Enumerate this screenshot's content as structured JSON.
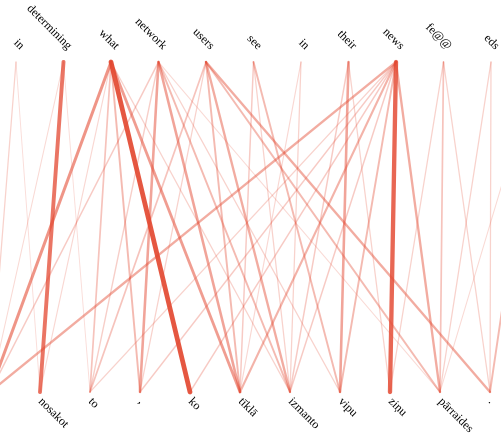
{
  "source_tokens": [
    "in",
    "determining",
    "what",
    "network",
    "users",
    "see",
    "in",
    "their",
    "news",
    "fe@@",
    "eds",
    "."
  ],
  "target_tokens": [
    "",
    "nosakot",
    "to",
    ",",
    "ko",
    "tīklā",
    "izmanto",
    "vipu",
    "ziņu",
    "pārraides",
    "."
  ],
  "colors": {
    "edge": "#e34a33"
  },
  "attention": [
    {
      "s": 0,
      "t": 0,
      "w": 0.15
    },
    {
      "s": 0,
      "t": 1,
      "w": 0.08
    },
    {
      "s": 1,
      "t": 1,
      "w": 0.75
    },
    {
      "s": 1,
      "t": 0,
      "w": 0.1
    },
    {
      "s": 1,
      "t": 2,
      "w": 0.08
    },
    {
      "s": 2,
      "t": 4,
      "w": 0.95
    },
    {
      "s": 2,
      "t": 0,
      "w": 0.55
    },
    {
      "s": 2,
      "t": 5,
      "w": 0.5
    },
    {
      "s": 2,
      "t": 3,
      "w": 0.3
    },
    {
      "s": 2,
      "t": 2,
      "w": 0.25
    },
    {
      "s": 2,
      "t": 6,
      "w": 0.15
    },
    {
      "s": 2,
      "t": 1,
      "w": 0.12
    },
    {
      "s": 3,
      "t": 5,
      "w": 0.45
    },
    {
      "s": 3,
      "t": 3,
      "w": 0.45
    },
    {
      "s": 3,
      "t": 6,
      "w": 0.3
    },
    {
      "s": 3,
      "t": 0,
      "w": 0.2
    },
    {
      "s": 3,
      "t": 2,
      "w": 0.18
    },
    {
      "s": 3,
      "t": 7,
      "w": 0.15
    },
    {
      "s": 3,
      "t": 9,
      "w": 0.1
    },
    {
      "s": 4,
      "t": 10,
      "w": 0.4
    },
    {
      "s": 4,
      "t": 6,
      "w": 0.4
    },
    {
      "s": 4,
      "t": 5,
      "w": 0.3
    },
    {
      "s": 4,
      "t": 9,
      "w": 0.3
    },
    {
      "s": 4,
      "t": 2,
      "w": 0.25
    },
    {
      "s": 4,
      "t": 3,
      "w": 0.15
    },
    {
      "s": 5,
      "t": 7,
      "w": 0.3
    },
    {
      "s": 5,
      "t": 5,
      "w": 0.2
    },
    {
      "s": 5,
      "t": 6,
      "w": 0.15
    },
    {
      "s": 6,
      "t": 6,
      "w": 0.15
    },
    {
      "s": 6,
      "t": 5,
      "w": 0.12
    },
    {
      "s": 7,
      "t": 7,
      "w": 0.45
    },
    {
      "s": 7,
      "t": 6,
      "w": 0.2
    },
    {
      "s": 7,
      "t": 8,
      "w": 0.15
    },
    {
      "s": 8,
      "t": 8,
      "w": 0.85
    },
    {
      "s": 8,
      "t": 0,
      "w": 0.4
    },
    {
      "s": 8,
      "t": 9,
      "w": 0.4
    },
    {
      "s": 8,
      "t": 5,
      "w": 0.35
    },
    {
      "s": 8,
      "t": 7,
      "w": 0.3
    },
    {
      "s": 8,
      "t": 4,
      "w": 0.2
    },
    {
      "s": 8,
      "t": 3,
      "w": 0.2
    },
    {
      "s": 8,
      "t": 6,
      "w": 0.2
    },
    {
      "s": 8,
      "t": 2,
      "w": 0.15
    },
    {
      "s": 9,
      "t": 9,
      "w": 0.25
    },
    {
      "s": 9,
      "t": 8,
      "w": 0.15
    },
    {
      "s": 9,
      "t": 10,
      "w": 0.15
    },
    {
      "s": 10,
      "t": 9,
      "w": 0.15
    },
    {
      "s": 10,
      "t": 10,
      "w": 0.15
    },
    {
      "s": 11,
      "t": 10,
      "w": 0.3
    },
    {
      "s": 11,
      "t": 9,
      "w": 0.1
    }
  ]
}
